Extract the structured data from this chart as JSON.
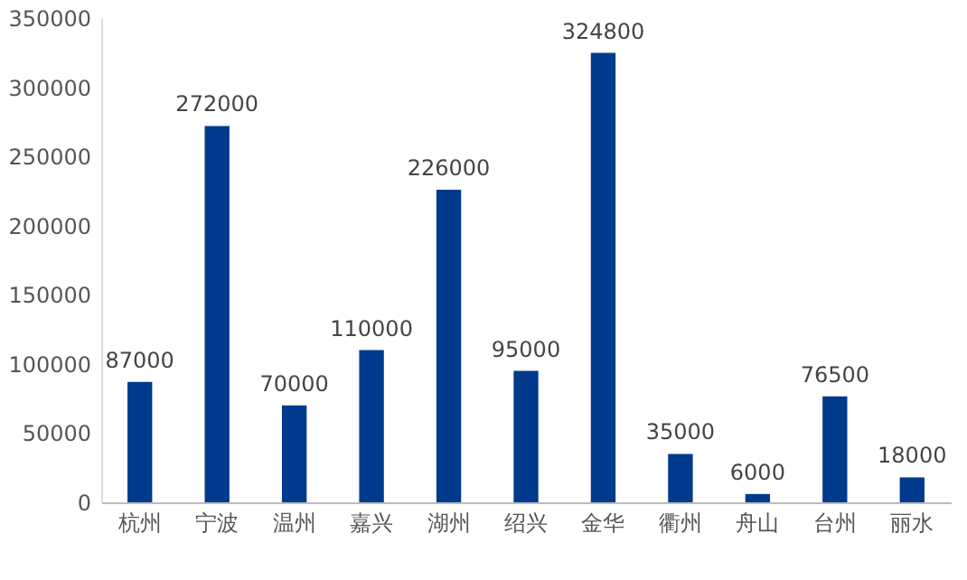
{
  "chart_data": {
    "type": "bar",
    "categories": [
      "杭州",
      "宁波",
      "温州",
      "嘉兴",
      "湖州",
      "绍兴",
      "金华",
      "衢州",
      "舟山",
      "台州",
      "丽水"
    ],
    "values": [
      87000,
      272000,
      70000,
      110000,
      226000,
      95000,
      324800,
      35000,
      6000,
      76500,
      18000
    ],
    "color": "#003a8c",
    "ylim": [
      0,
      350000
    ],
    "yticks": [
      0,
      50000,
      100000,
      150000,
      200000,
      250000,
      300000,
      350000
    ],
    "data_labels": true
  }
}
